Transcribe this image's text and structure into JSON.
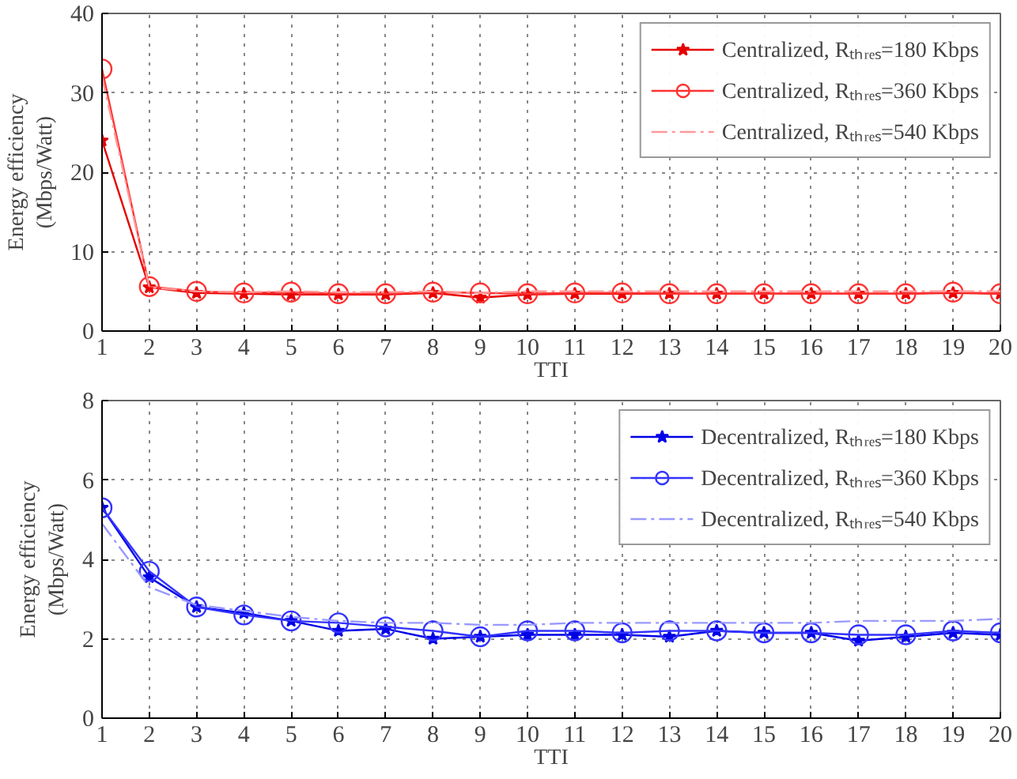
{
  "chart_data": [
    {
      "type": "line",
      "xlabel": "TTI",
      "ylabel": "Energy efficiency\n(Mbps/Watt)",
      "x": [
        1,
        2,
        3,
        4,
        5,
        6,
        7,
        8,
        9,
        10,
        11,
        12,
        13,
        14,
        15,
        16,
        17,
        18,
        19,
        20
      ],
      "xlim": [
        1,
        20
      ],
      "xticks": [
        1,
        2,
        3,
        4,
        5,
        6,
        7,
        8,
        9,
        10,
        11,
        12,
        13,
        14,
        15,
        16,
        17,
        18,
        19,
        20
      ],
      "ylim": [
        0,
        40
      ],
      "yticks": [
        0,
        10,
        20,
        30,
        40
      ],
      "grid": true,
      "legend": "top right",
      "series": [
        {
          "name": "Centralized, Rₜₕᵣₑₛ=180 Kbps",
          "color": "#e60000",
          "marker": "star",
          "line_style": "solid",
          "values": [
            24,
            5.5,
            4.8,
            4.7,
            4.6,
            4.6,
            4.6,
            4.8,
            4.2,
            4.6,
            4.7,
            4.7,
            4.7,
            4.7,
            4.7,
            4.7,
            4.7,
            4.7,
            4.8,
            4.7
          ]
        },
        {
          "name": "Centralized, Rₜₕᵣₑₛ=360 Kbps",
          "color": "#ff3333",
          "marker": "circle",
          "line_style": "solid",
          "values": [
            33,
            5.6,
            5,
            4.8,
            4.9,
            4.7,
            4.7,
            4.9,
            4.8,
            4.7,
            4.8,
            4.8,
            4.7,
            4.7,
            4.7,
            4.7,
            4.7,
            4.7,
            4.9,
            4.7
          ]
        },
        {
          "name": "Centralized, Rₜₕᵣₑₛ=540 Kbps",
          "color": "#ff9999",
          "marker": "none",
          "line_style": "dashed",
          "values": [
            32,
            5.5,
            5,
            4.9,
            5,
            4.9,
            4.9,
            5,
            4.8,
            5,
            5,
            5,
            5,
            5,
            5,
            5,
            5,
            5,
            5,
            5
          ]
        }
      ]
    },
    {
      "type": "line",
      "xlabel": "TTI",
      "ylabel": "Energy efficiency\n(Mbps/Watt)",
      "x": [
        1,
        2,
        3,
        4,
        5,
        6,
        7,
        8,
        9,
        10,
        11,
        12,
        13,
        14,
        15,
        16,
        17,
        18,
        19,
        20
      ],
      "xlim": [
        1,
        20
      ],
      "xticks": [
        1,
        2,
        3,
        4,
        5,
        6,
        7,
        8,
        9,
        10,
        11,
        12,
        13,
        14,
        15,
        16,
        17,
        18,
        19,
        20
      ],
      "ylim": [
        0,
        8
      ],
      "yticks": [
        0,
        2,
        4,
        6,
        8
      ],
      "grid": true,
      "legend": "top right",
      "series": [
        {
          "name": "Decentralized, Rₜₕᵣₑₛ=180 Kbps",
          "color": "#0000e6",
          "marker": "star",
          "line_style": "solid",
          "values": [
            5.3,
            3.55,
            2.8,
            2.65,
            2.45,
            2.2,
            2.25,
            2.0,
            2.05,
            2.1,
            2.1,
            2.1,
            2.05,
            2.2,
            2.15,
            2.15,
            1.95,
            2.05,
            2.15,
            2.1
          ]
        },
        {
          "name": "Decentralized, Rₜₕᵣₑₛ=360 Kbps",
          "color": "#3333ff",
          "marker": "circle",
          "line_style": "solid",
          "values": [
            5.3,
            3.7,
            2.8,
            2.6,
            2.45,
            2.4,
            2.3,
            2.2,
            2.05,
            2.2,
            2.2,
            2.15,
            2.2,
            2.2,
            2.15,
            2.15,
            2.1,
            2.1,
            2.2,
            2.15
          ]
        },
        {
          "name": "Decentralized, Rₜₕᵣₑₛ=540 Kbps",
          "color": "#9999ff",
          "marker": "none",
          "line_style": "dashed",
          "values": [
            4.9,
            3.3,
            2.85,
            2.7,
            2.55,
            2.45,
            2.4,
            2.4,
            2.35,
            2.35,
            2.4,
            2.4,
            2.4,
            2.4,
            2.4,
            2.4,
            2.45,
            2.45,
            2.45,
            2.5
          ]
        }
      ]
    }
  ]
}
